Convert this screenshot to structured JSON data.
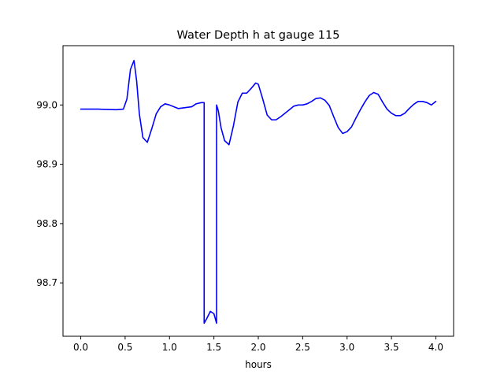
{
  "chart_data": {
    "type": "line",
    "title": "Water Depth h at gauge 115",
    "xlabel": "hours",
    "ylabel": "",
    "xlim": [
      -0.2,
      4.2
    ],
    "ylim": [
      98.61,
      99.1
    ],
    "grid": false,
    "legend": "none",
    "x_ticks": [
      0.0,
      0.5,
      1.0,
      1.5,
      2.0,
      2.5,
      3.0,
      3.5,
      4.0
    ],
    "x_tick_labels": [
      "0.0",
      "0.5",
      "1.0",
      "1.5",
      "2.0",
      "2.5",
      "3.0",
      "3.5",
      "4.0"
    ],
    "y_ticks": [
      98.7,
      98.8,
      98.9,
      99.0
    ],
    "y_tick_labels": [
      "98.7",
      "98.8",
      "98.9",
      "99.0"
    ],
    "colors": {
      "line": "#0000ff",
      "axes": "#000000"
    },
    "series": [
      {
        "x": [
          0.0,
          0.2,
          0.4,
          0.48,
          0.52,
          0.56,
          0.6,
          0.63,
          0.66,
          0.7,
          0.75,
          0.8,
          0.85,
          0.9,
          0.95,
          1.0,
          1.05,
          1.1,
          1.15,
          1.2,
          1.25,
          1.3,
          1.36,
          1.39,
          1.39,
          1.42,
          1.46,
          1.5,
          1.53,
          1.53,
          1.55,
          1.58,
          1.62,
          1.67,
          1.72,
          1.77,
          1.82,
          1.87,
          1.92,
          1.97,
          2.0,
          2.05,
          2.1,
          2.15,
          2.2,
          2.25,
          2.3,
          2.35,
          2.4,
          2.45,
          2.5,
          2.55,
          2.6,
          2.65,
          2.7,
          2.75,
          2.8,
          2.85,
          2.9,
          2.95,
          3.0,
          3.05,
          3.1,
          3.15,
          3.2,
          3.25,
          3.3,
          3.35,
          3.4,
          3.45,
          3.5,
          3.55,
          3.6,
          3.65,
          3.7,
          3.75,
          3.8,
          3.85,
          3.9,
          3.95,
          4.0
        ],
        "y": [
          98.993,
          98.993,
          98.992,
          98.993,
          99.01,
          99.06,
          99.075,
          99.04,
          98.985,
          98.945,
          98.937,
          98.96,
          98.985,
          98.997,
          99.002,
          99.0,
          98.997,
          98.994,
          98.995,
          98.996,
          98.997,
          99.002,
          99.004,
          99.004,
          98.632,
          98.64,
          98.652,
          98.648,
          98.632,
          99.0,
          98.99,
          98.962,
          98.94,
          98.933,
          98.965,
          99.005,
          99.02,
          99.02,
          99.028,
          99.037,
          99.035,
          99.01,
          98.983,
          98.975,
          98.975,
          98.98,
          98.986,
          98.992,
          98.998,
          99.0,
          99.0,
          99.002,
          99.006,
          99.011,
          99.012,
          99.008,
          98.999,
          98.98,
          98.962,
          98.952,
          98.955,
          98.963,
          98.978,
          98.992,
          99.005,
          99.016,
          99.021,
          99.018,
          99.005,
          98.993,
          98.986,
          98.982,
          98.982,
          98.986,
          98.994,
          99.001,
          99.006,
          99.006,
          99.004,
          99.0,
          99.006
        ]
      }
    ]
  }
}
